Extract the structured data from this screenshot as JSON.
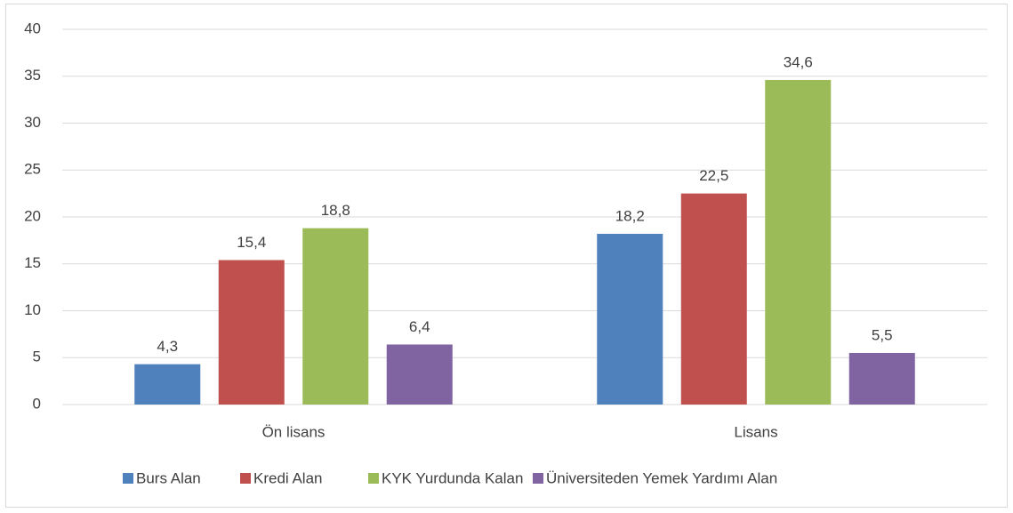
{
  "chart_data": {
    "type": "bar",
    "categories": [
      "Ön lisans",
      "Lisans"
    ],
    "series": [
      {
        "name": "Burs Alan",
        "color": "#4f81bd",
        "values": [
          4.3,
          18.2
        ],
        "value_labels": [
          "4,3",
          "18,2"
        ]
      },
      {
        "name": "Kredi Alan",
        "color": "#c0504d",
        "values": [
          15.4,
          22.5
        ],
        "value_labels": [
          "15,4",
          "22,5"
        ]
      },
      {
        "name": "KYK Yurdunda Kalan",
        "color": "#9bbb59",
        "values": [
          18.8,
          34.6
        ],
        "value_labels": [
          "18,8",
          "34,6"
        ]
      },
      {
        "name": "Üniversiteden Yemek Yardımı Alan",
        "color": "#8064a2",
        "values": [
          6.4,
          5.5
        ],
        "value_labels": [
          "6,4",
          "5,5"
        ]
      }
    ],
    "ylim": [
      0,
      40
    ],
    "yticks": [
      0,
      5,
      10,
      15,
      20,
      25,
      30,
      35,
      40
    ],
    "grid": true,
    "legend": "bottom"
  }
}
